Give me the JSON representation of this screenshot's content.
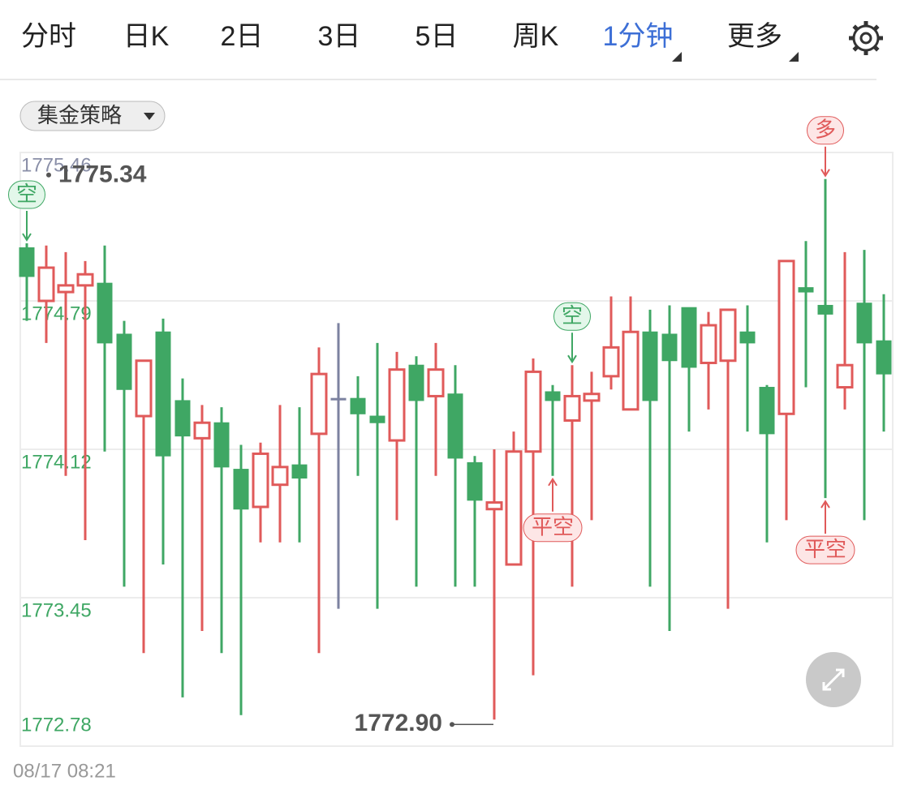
{
  "tabs": [
    "分时",
    "日K",
    "2日",
    "3日",
    "5日",
    "周K",
    "1分钟",
    "更多"
  ],
  "active_tab": 6,
  "strategy_button": "集金策略",
  "timestamp": "08/17 08:21",
  "chart_data": {
    "type": "candlestick",
    "up_color": "#e05a5a",
    "down_color": "#3fa764",
    "ylim": [
      1772.78,
      1775.46
    ],
    "yticks": [
      1775.46,
      1774.79,
      1774.12,
      1773.45,
      1772.78
    ],
    "grid": true,
    "max_label": 1775.34,
    "min_label": {
      "value": 1772.9,
      "label": "1772.90"
    },
    "open": [
      1775.03,
      1774.79,
      1774.83,
      1774.86,
      1774.87,
      1774.64,
      1774.27,
      1774.65,
      1774.34,
      1774.17,
      1774.24,
      1774.03,
      1773.86,
      1773.96,
      1774.05,
      1774.19,
      1774.35,
      1774.35,
      1774.27,
      1774.16,
      1774.5,
      1774.36,
      1774.37,
      1774.06,
      1773.85,
      1773.6,
      1774.11,
      1774.38,
      1774.25,
      1774.34,
      1774.45,
      1774.3,
      1774.65,
      1774.64,
      1774.76,
      1774.51,
      1774.52,
      1774.65,
      1774.4,
      1774.28,
      1774.85,
      1774.77,
      1774.4,
      1774.78,
      1774.61
    ],
    "close": [
      1774.9,
      1774.94,
      1774.86,
      1774.91,
      1774.6,
      1774.39,
      1774.52,
      1774.09,
      1774.18,
      1774.24,
      1774.04,
      1773.85,
      1774.1,
      1774.04,
      1773.99,
      1774.46,
      1774.35,
      1774.28,
      1774.24,
      1774.48,
      1774.34,
      1774.48,
      1774.08,
      1773.89,
      1773.88,
      1774.11,
      1774.47,
      1774.34,
      1774.36,
      1774.37,
      1774.58,
      1774.65,
      1774.34,
      1774.52,
      1774.49,
      1774.68,
      1774.75,
      1774.6,
      1774.19,
      1774.97,
      1774.83,
      1774.73,
      1774.5,
      1774.6,
      1774.46
    ],
    "high": [
      1775.05,
      1775.04,
      1775.01,
      1774.97,
      1775.04,
      1774.7,
      1774.52,
      1774.71,
      1774.44,
      1774.32,
      1774.31,
      1774.14,
      1774.15,
      1774.32,
      1774.31,
      1774.58,
      1774.69,
      1774.45,
      1774.6,
      1774.56,
      1774.54,
      1774.6,
      1774.5,
      1774.09,
      1774.12,
      1774.2,
      1774.53,
      1774.41,
      1774.5,
      1774.47,
      1774.81,
      1774.81,
      1774.75,
      1774.77,
      1774.76,
      1774.74,
      1774.75,
      1774.77,
      1774.41,
      1774.97,
      1775.06,
      1775.34,
      1775.01,
      1775.02,
      1774.82
    ],
    "low": [
      1774.7,
      1774.6,
      1774.0,
      1773.71,
      1774.11,
      1773.5,
      1773.2,
      1773.6,
      1773.0,
      1773.3,
      1773.2,
      1772.92,
      1773.7,
      1773.7,
      1773.7,
      1773.2,
      1773.4,
      1774.0,
      1773.4,
      1773.8,
      1773.5,
      1774.0,
      1773.5,
      1773.5,
      1772.9,
      1773.6,
      1773.1,
      1774.0,
      1773.5,
      1773.8,
      1774.39,
      1774.3,
      1773.5,
      1773.3,
      1774.2,
      1774.3,
      1773.4,
      1774.2,
      1773.7,
      1773.8,
      1774.4,
      1773.9,
      1774.3,
      1773.8,
      1774.2
    ],
    "signals": [
      {
        "text": "空",
        "index": 0,
        "side": "above"
      },
      {
        "text": "平空",
        "index": 27,
        "side": "below"
      },
      {
        "text": "空",
        "index": 28,
        "side": "above"
      },
      {
        "text": "多",
        "index": 41,
        "side": "above"
      },
      {
        "text": "平空",
        "index": 41,
        "side": "below"
      }
    ]
  }
}
